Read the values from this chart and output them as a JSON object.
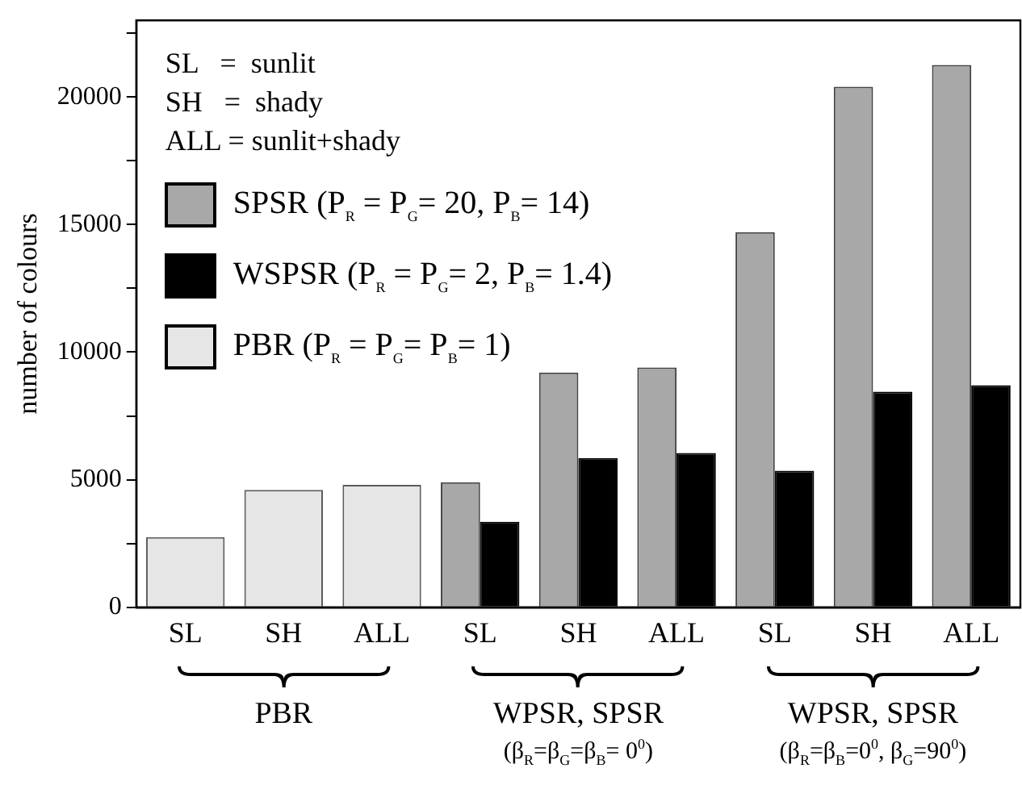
{
  "chart_data": {
    "type": "bar",
    "ylabel": "number of colours",
    "categories": [
      "SL",
      "SH",
      "ALL",
      "SL",
      "SH",
      "ALL",
      "SL",
      "SH",
      "ALL"
    ],
    "series": [
      {
        "name": "SPSR (P$_{R}$ = P$_{G}$= 20, P$_{B}$= 14)",
        "color": "#a8a8a8",
        "values": [
          null,
          null,
          null,
          4900,
          9200,
          9400,
          14700,
          20400,
          21250
        ]
      },
      {
        "name": "WSPSR (P$_{R}$ = P$_{G}$= 2, P$_{B}$= 1.4)",
        "color": "#000000",
        "values": [
          null,
          null,
          null,
          3350,
          5850,
          6050,
          5350,
          8450,
          8700
        ]
      },
      {
        "name": "PBR (P$_{R}$ = P$_{G}$= P$_{B}$= 1)",
        "color": "#e6e6e6",
        "values": [
          2750,
          4600,
          4800,
          null,
          null,
          null,
          null,
          null,
          null
        ]
      }
    ],
    "ylim": [
      0,
      23000
    ],
    "yticks": [
      0,
      {
        "value": 2500,
        "label": null
      },
      5000,
      {
        "value": 7500,
        "label": null
      },
      10000,
      {
        "value": 12500,
        "label": null
      },
      15000,
      {
        "value": 17500,
        "label": null
      },
      20000,
      {
        "value": 22500,
        "label": null
      }
    ],
    "grid": false,
    "legend": "top left",
    "annotations": [
      "SL   =  sunlit",
      "SH   =  shady",
      "ALL = sunlit+shady",
      "PBR",
      "WPSR, SPSR",
      "(β$_{R}$=β$_{G}$=β$_{B}$= 0$^{0}$)",
      "WPSR, SPSR",
      "(β$_{R}$=β$_{B}$=0$^{0}$, β$_{G}$=90$^{0}$)"
    ]
  }
}
